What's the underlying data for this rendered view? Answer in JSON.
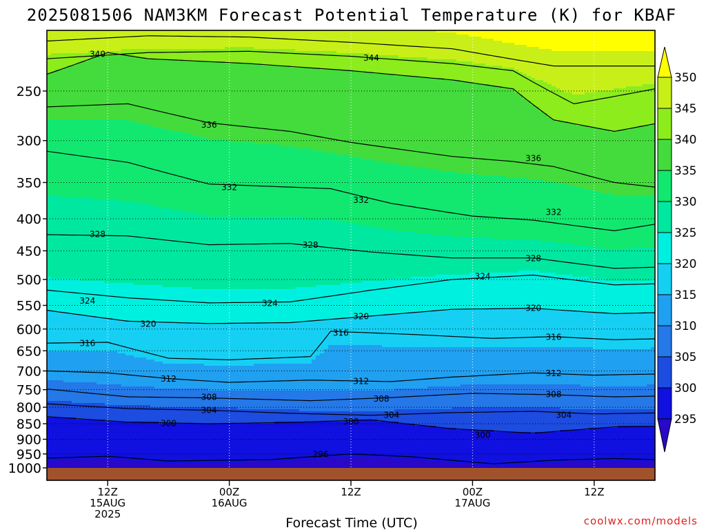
{
  "chart_data": {
    "type": "heatmap",
    "title": "2025081506 NAM3KM Forecast Potential Temperature (K) for KBAF",
    "xlabel": "Forecast Time (UTC)",
    "ylabel": "",
    "credit": "coolwx.com/models",
    "y_scale": "log",
    "ylim": [
      1000,
      200
    ],
    "y_ticks": [
      250,
      300,
      350,
      400,
      450,
      500,
      550,
      600,
      650,
      700,
      750,
      800,
      850,
      900,
      950,
      1000
    ],
    "xlim_hours": [
      0,
      60
    ],
    "x_ticks": [
      {
        "hour": 6,
        "lines": [
          "12Z",
          "15AUG",
          "2025"
        ]
      },
      {
        "hour": 18,
        "lines": [
          "00Z",
          "16AUG"
        ]
      },
      {
        "hour": 30,
        "lines": [
          "12Z"
        ]
      },
      {
        "hour": 42,
        "lines": [
          "00Z",
          "17AUG"
        ]
      },
      {
        "hour": 54,
        "lines": [
          "12Z"
        ]
      }
    ],
    "grid": true,
    "colorbar": {
      "levels": [
        295,
        300,
        305,
        310,
        315,
        320,
        325,
        330,
        335,
        340,
        345,
        350
      ],
      "colors": [
        "#1010e0",
        "#1c4ce0",
        "#2478e8",
        "#20a0f0",
        "#16d0f4",
        "#00f0e0",
        "#00e8a0",
        "#12e870",
        "#44dc3c",
        "#8cec1c",
        "#c8f018",
        "#ffff00"
      ],
      "under_color": "#2a08c8",
      "over_color": "#ffff00"
    },
    "contour_interval": 4,
    "contour_labels": [
      {
        "value": "340",
        "hour": 5,
        "p": 218
      },
      {
        "value": "344",
        "hour": 32,
        "p": 221
      },
      {
        "value": "336",
        "hour": 16,
        "p": 283
      },
      {
        "value": "336",
        "hour": 48,
        "p": 320
      },
      {
        "value": "332",
        "hour": 18,
        "p": 356
      },
      {
        "value": "332",
        "hour": 31,
        "p": 373
      },
      {
        "value": "332",
        "hour": 50,
        "p": 390
      },
      {
        "value": "328",
        "hour": 5,
        "p": 423
      },
      {
        "value": "328",
        "hour": 26,
        "p": 440
      },
      {
        "value": "328",
        "hour": 48,
        "p": 462
      },
      {
        "value": "324",
        "hour": 4,
        "p": 540
      },
      {
        "value": "324",
        "hour": 22,
        "p": 545
      },
      {
        "value": "324",
        "hour": 43,
        "p": 494
      },
      {
        "value": "320",
        "hour": 10,
        "p": 588
      },
      {
        "value": "320",
        "hour": 31,
        "p": 572
      },
      {
        "value": "320",
        "hour": 48,
        "p": 555
      },
      {
        "value": "316",
        "hour": 4,
        "p": 632
      },
      {
        "value": "316",
        "hour": 29,
        "p": 608
      },
      {
        "value": "316",
        "hour": 50,
        "p": 617
      },
      {
        "value": "312",
        "hour": 12,
        "p": 720
      },
      {
        "value": "312",
        "hour": 31,
        "p": 726
      },
      {
        "value": "312",
        "hour": 50,
        "p": 705
      },
      {
        "value": "308",
        "hour": 16,
        "p": 770
      },
      {
        "value": "308",
        "hour": 33,
        "p": 775
      },
      {
        "value": "308",
        "hour": 50,
        "p": 762
      },
      {
        "value": "304",
        "hour": 16,
        "p": 808
      },
      {
        "value": "304",
        "hour": 34,
        "p": 822
      },
      {
        "value": "304",
        "hour": 51,
        "p": 822
      },
      {
        "value": "300",
        "hour": 12,
        "p": 848
      },
      {
        "value": "300",
        "hour": 30,
        "p": 842
      },
      {
        "value": "300",
        "hour": 43,
        "p": 885
      },
      {
        "value": "296",
        "hour": 27,
        "p": 950
      }
    ],
    "isentrope_pressure_hpa": [
      {
        "theta": 348,
        "points": [
          [
            0,
            208
          ],
          [
            10,
            204
          ],
          [
            20,
            205
          ],
          [
            30,
            209
          ],
          [
            40,
            214
          ],
          [
            50,
            228
          ],
          [
            60,
            228
          ]
        ]
      },
      {
        "theta": 344,
        "points": [
          [
            0,
            222
          ],
          [
            10,
            217
          ],
          [
            20,
            216
          ],
          [
            30,
            220
          ],
          [
            40,
            226
          ],
          [
            46,
            232
          ],
          [
            52,
            262
          ],
          [
            56,
            255
          ],
          [
            60,
            248
          ]
        ]
      },
      {
        "theta": 340,
        "points": [
          [
            0,
            235
          ],
          [
            6,
            217
          ],
          [
            10,
            222
          ],
          [
            20,
            226
          ],
          [
            30,
            232
          ],
          [
            40,
            240
          ],
          [
            46,
            248
          ],
          [
            50,
            278
          ],
          [
            56,
            290
          ],
          [
            60,
            282
          ]
        ]
      },
      {
        "theta": 336,
        "points": [
          [
            0,
            265
          ],
          [
            8,
            262
          ],
          [
            16,
            281
          ],
          [
            24,
            290
          ],
          [
            30,
            302
          ],
          [
            40,
            318
          ],
          [
            46,
            324
          ],
          [
            50,
            330
          ],
          [
            56,
            350
          ],
          [
            60,
            356
          ]
        ]
      },
      {
        "theta": 332,
        "points": [
          [
            0,
            312
          ],
          [
            8,
            325
          ],
          [
            16,
            352
          ],
          [
            20,
            354
          ],
          [
            28,
            358
          ],
          [
            34,
            378
          ],
          [
            42,
            396
          ],
          [
            48,
            402
          ],
          [
            56,
            418
          ],
          [
            60,
            408
          ]
        ]
      },
      {
        "theta": 328,
        "points": [
          [
            0,
            424
          ],
          [
            8,
            426
          ],
          [
            16,
            440
          ],
          [
            24,
            438
          ],
          [
            32,
            452
          ],
          [
            40,
            462
          ],
          [
            48,
            462
          ],
          [
            56,
            480
          ],
          [
            60,
            478
          ]
        ]
      },
      {
        "theta": 324,
        "points": [
          [
            0,
            520
          ],
          [
            8,
            535
          ],
          [
            16,
            545
          ],
          [
            24,
            543
          ],
          [
            32,
            520
          ],
          [
            40,
            500
          ],
          [
            48,
            492
          ],
          [
            56,
            510
          ],
          [
            60,
            508
          ]
        ]
      },
      {
        "theta": 320,
        "points": [
          [
            0,
            560
          ],
          [
            8,
            583
          ],
          [
            16,
            588
          ],
          [
            24,
            586
          ],
          [
            32,
            572
          ],
          [
            40,
            558
          ],
          [
            48,
            556
          ],
          [
            56,
            567
          ],
          [
            60,
            565
          ]
        ]
      },
      {
        "theta": 316,
        "points": [
          [
            0,
            632
          ],
          [
            6,
            630
          ],
          [
            12,
            668
          ],
          [
            18,
            672
          ],
          [
            26,
            664
          ],
          [
            28,
            605
          ],
          [
            36,
            612
          ],
          [
            44,
            621
          ],
          [
            50,
            617
          ],
          [
            56,
            624
          ],
          [
            60,
            622
          ]
        ]
      },
      {
        "theta": 312,
        "points": [
          [
            0,
            700
          ],
          [
            6,
            705
          ],
          [
            12,
            720
          ],
          [
            18,
            730
          ],
          [
            26,
            724
          ],
          [
            34,
            728
          ],
          [
            40,
            716
          ],
          [
            48,
            705
          ],
          [
            54,
            711
          ],
          [
            60,
            708
          ]
        ]
      },
      {
        "theta": 308,
        "points": [
          [
            0,
            748
          ],
          [
            8,
            770
          ],
          [
            16,
            773
          ],
          [
            26,
            781
          ],
          [
            34,
            772
          ],
          [
            42,
            760
          ],
          [
            50,
            764
          ],
          [
            56,
            770
          ],
          [
            60,
            768
          ]
        ]
      },
      {
        "theta": 304,
        "points": [
          [
            0,
            790
          ],
          [
            8,
            804
          ],
          [
            16,
            809
          ],
          [
            24,
            818
          ],
          [
            32,
            824
          ],
          [
            40,
            816
          ],
          [
            48,
            812
          ],
          [
            54,
            820
          ],
          [
            60,
            817
          ]
        ]
      },
      {
        "theta": 300,
        "points": [
          [
            0,
            828
          ],
          [
            8,
            845
          ],
          [
            16,
            850
          ],
          [
            24,
            846
          ],
          [
            32,
            838
          ],
          [
            40,
            866
          ],
          [
            48,
            880
          ],
          [
            56,
            860
          ],
          [
            60,
            858
          ]
        ]
      },
      {
        "theta": 296,
        "points": [
          [
            0,
            965
          ],
          [
            6,
            958
          ],
          [
            12,
            975
          ],
          [
            22,
            970
          ],
          [
            30,
            950
          ],
          [
            36,
            960
          ],
          [
            44,
            985
          ],
          [
            50,
            972
          ],
          [
            56,
            966
          ],
          [
            60,
            970
          ]
        ]
      }
    ]
  }
}
